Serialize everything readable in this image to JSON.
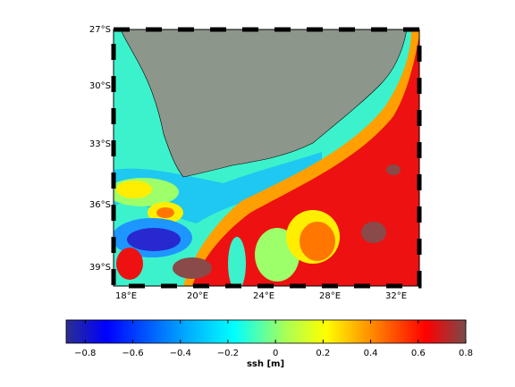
{
  "map": {
    "lat_labels": [
      "27°S",
      "30°S",
      "33°S",
      "36°S",
      "39°S"
    ],
    "lon_labels": [
      "18°E",
      "20°E",
      "24°E",
      "28°E",
      "32°E"
    ],
    "colorbar": {
      "label": "ssh [m]",
      "clim": [
        -0.88,
        0.8
      ],
      "ticks": [
        {
          "value": -0.8,
          "label": "−0.8"
        },
        {
          "value": -0.6,
          "label": "−0.6"
        },
        {
          "value": -0.4,
          "label": "−0.4"
        },
        {
          "value": -0.2,
          "label": "−0.2"
        },
        0,
        0.2,
        0.4,
        0.6,
        0.8
      ]
    }
  }
}
